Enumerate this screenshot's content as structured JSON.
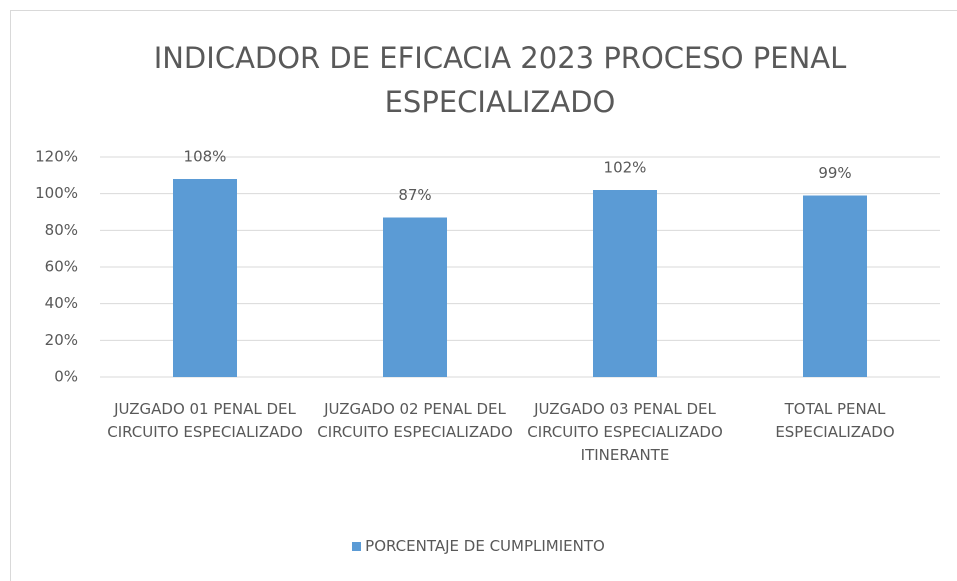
{
  "chart_data": {
    "type": "bar",
    "title": "INDICADOR DE EFICACIA 2023 PROCESO PENAL ESPECIALIZADO",
    "categories": [
      "JUZGADO 01 PENAL DEL CIRCUITO ESPECIALIZADO",
      "JUZGADO 02 PENAL DEL CIRCUITO ESPECIALIZADO",
      "JUZGADO 03 PENAL DEL CIRCUITO ESPECIALIZADO ITINERANTE",
      "TOTAL PENAL ESPECIALIZADO"
    ],
    "series": [
      {
        "name": "PORCENTAJE DE CUMPLIMIENTO",
        "color": "#5b9bd5",
        "values": [
          108,
          87,
          102,
          99
        ],
        "value_labels": [
          "108%",
          "87%",
          "102%",
          "99%"
        ]
      }
    ],
    "ylim": [
      0,
      120
    ],
    "yticks": [
      {
        "value": 0,
        "label": "0%"
      },
      {
        "value": 20,
        "label": "20%"
      },
      {
        "value": 40,
        "label": "40%"
      },
      {
        "value": 60,
        "label": "60%"
      },
      {
        "value": 80,
        "label": "80%"
      },
      {
        "value": 100,
        "label": "100%"
      },
      {
        "value": 120,
        "label": "120%"
      }
    ],
    "grid": true,
    "legend": "bottom"
  }
}
